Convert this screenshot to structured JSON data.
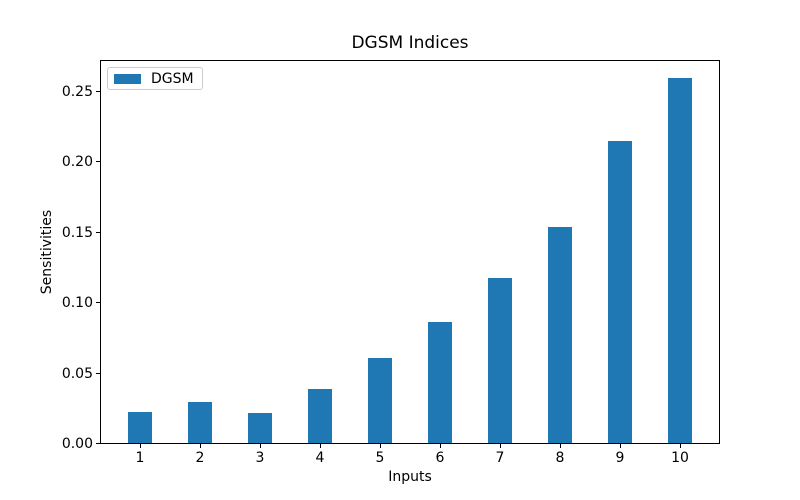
{
  "chart_data": {
    "type": "bar",
    "title": "DGSM Indices",
    "xlabel": "Inputs",
    "ylabel": "Sensitivities",
    "categories": [
      "1",
      "2",
      "3",
      "4",
      "5",
      "6",
      "7",
      "8",
      "9",
      "10"
    ],
    "series": [
      {
        "name": "DGSM",
        "color": "#1f77b4",
        "values": [
          0.022,
          0.029,
          0.021,
          0.038,
          0.06,
          0.086,
          0.117,
          0.153,
          0.214,
          0.259
        ]
      }
    ],
    "bar_width": 0.4,
    "xlim": [
      0.33,
      10.67
    ],
    "ylim": [
      0,
      0.2725
    ],
    "yticks": {
      "values": [
        0,
        0.05,
        0.1,
        0.15,
        0.2,
        0.25
      ],
      "labels": [
        "0.00",
        "0.05",
        "0.10",
        "0.15",
        "0.20",
        "0.25"
      ]
    },
    "grid": false,
    "legend": {
      "position": "upper left",
      "entries": [
        {
          "label": "DGSM",
          "color": "#1f77b4"
        }
      ]
    }
  }
}
